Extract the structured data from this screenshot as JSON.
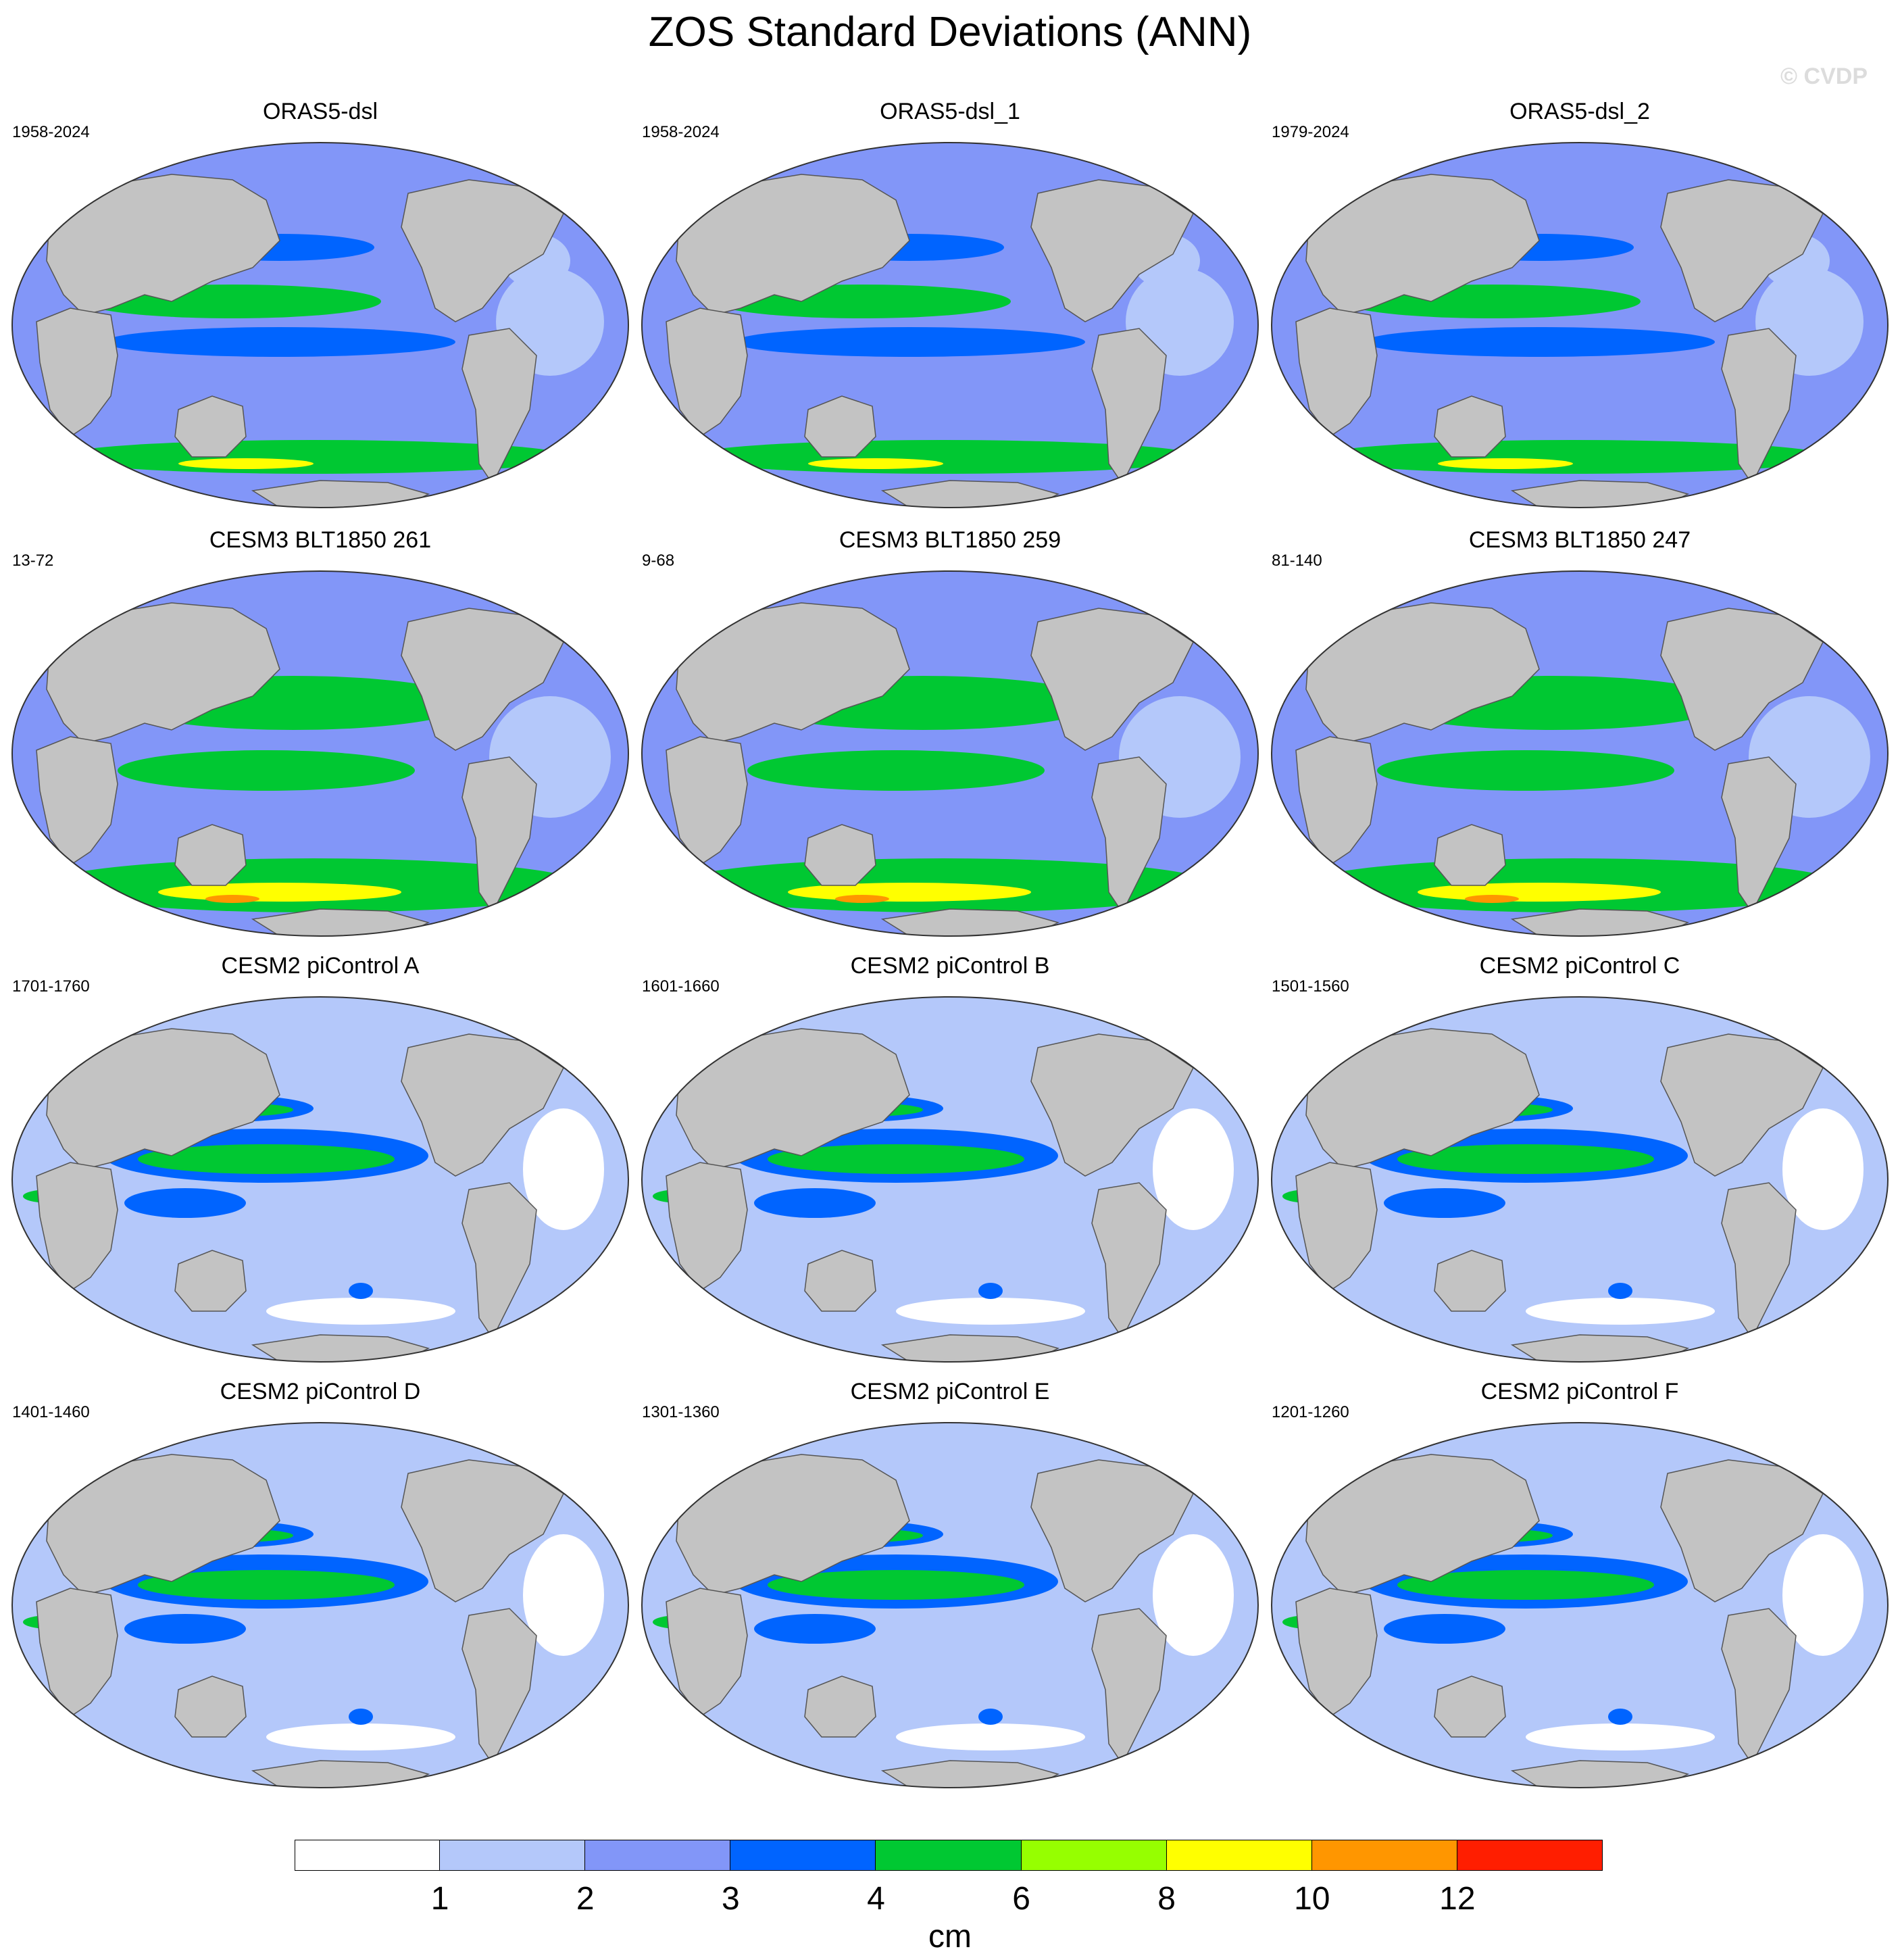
{
  "title": "ZOS Standard Deviations (ANN)",
  "watermark": "© CVDP",
  "panels": [
    {
      "title": "ORAS5-dsl",
      "period": "1958-2024",
      "style": "obs"
    },
    {
      "title": "ORAS5-dsl_1",
      "period": "1958-2024",
      "style": "obs"
    },
    {
      "title": "ORAS5-dsl_2",
      "period": "1979-2024",
      "style": "obs"
    },
    {
      "title": "CESM3 BLT1850 261",
      "period": "13-72",
      "style": "cesm3"
    },
    {
      "title": "CESM3 BLT1850 259",
      "period": "9-68",
      "style": "cesm3"
    },
    {
      "title": "CESM3 BLT1850 247",
      "period": "81-140",
      "style": "cesm3"
    },
    {
      "title": "CESM2 piControl A",
      "period": "1701-1760",
      "style": "cesm2"
    },
    {
      "title": "CESM2 piControl B",
      "period": "1601-1660",
      "style": "cesm2"
    },
    {
      "title": "CESM2 piControl C",
      "period": "1501-1560",
      "style": "cesm2"
    },
    {
      "title": "CESM2 piControl D",
      "period": "1401-1460",
      "style": "cesm2"
    },
    {
      "title": "CESM2 piControl E",
      "period": "1301-1360",
      "style": "cesm2"
    },
    {
      "title": "CESM2 piControl F",
      "period": "1201-1260",
      "style": "cesm2"
    }
  ],
  "colorbar": {
    "units": "cm",
    "labels": [
      "1",
      "2",
      "3",
      "4",
      "6",
      "8",
      "10",
      "12"
    ],
    "colors": [
      "#ffffff",
      "#b4c8fa",
      "#8296f8",
      "#0064ff",
      "#00c832",
      "#96ff00",
      "#ffff00",
      "#ff9600",
      "#ff1e00"
    ]
  },
  "land_color": "#c3c3c3"
}
